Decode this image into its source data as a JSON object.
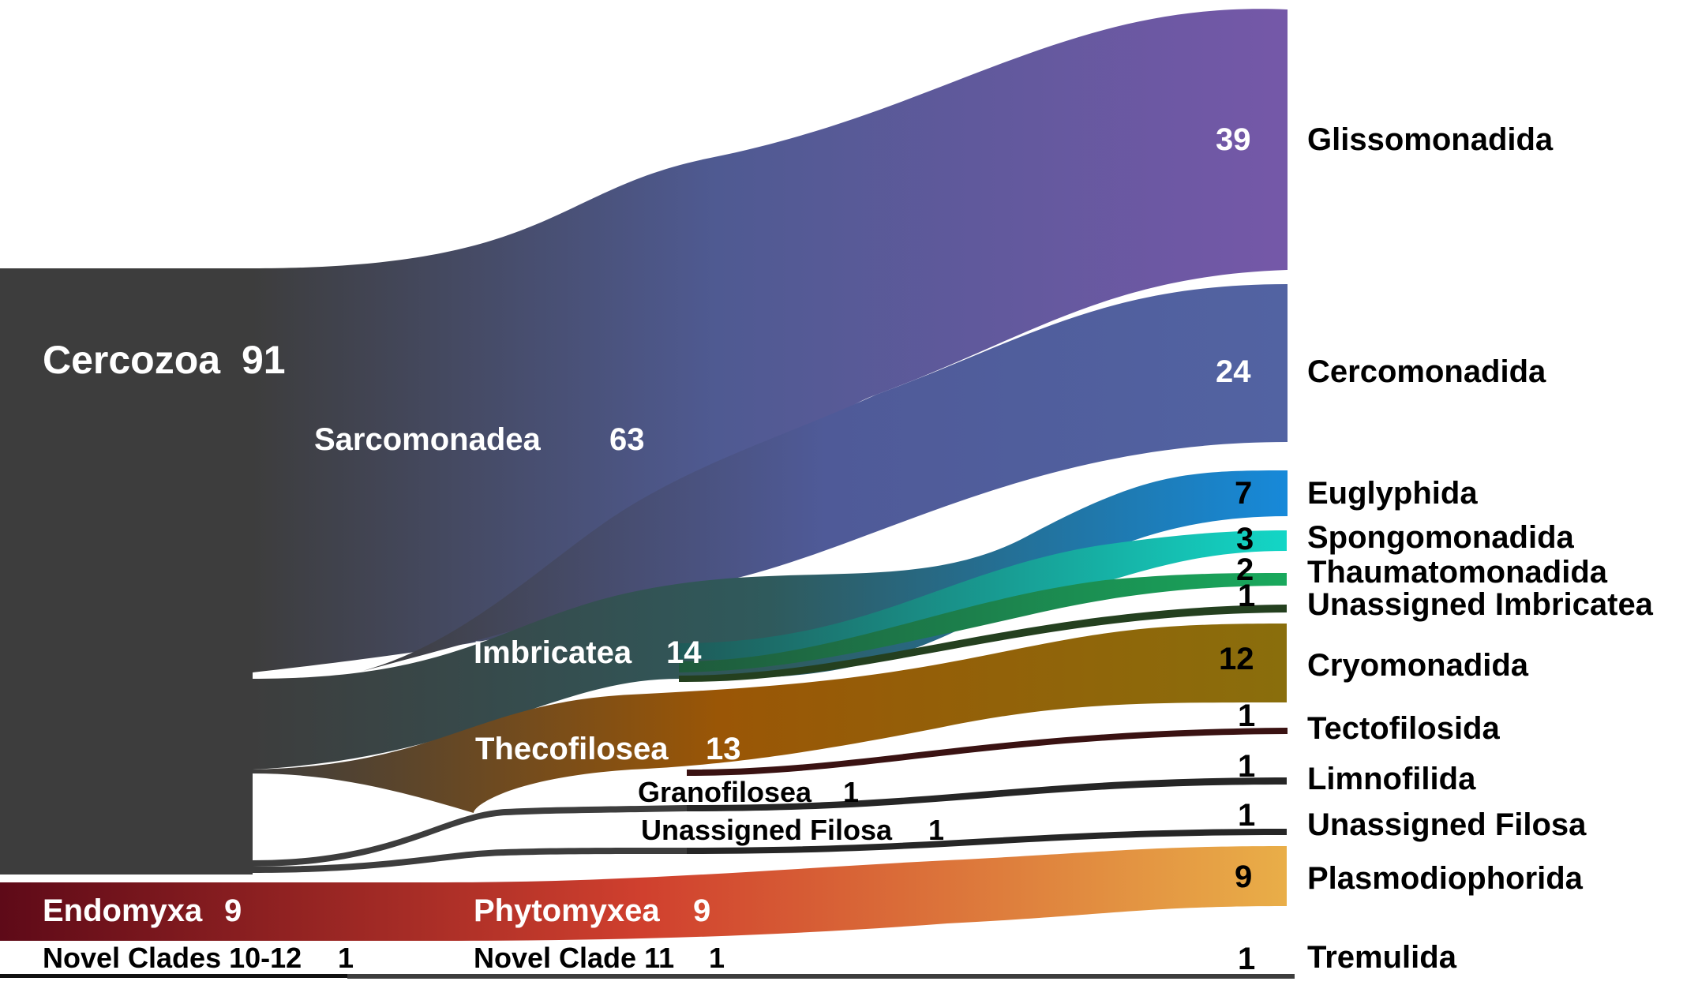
{
  "chart_data": {
    "type": "sankey",
    "title": "",
    "level1": [
      {
        "name": "Cercozoa",
        "value": 91
      },
      {
        "name": "Endomyxa",
        "value": 9
      },
      {
        "name": "Novel Clades 10-12",
        "value": 1
      }
    ],
    "level2": [
      {
        "name": "Sarcomonadea",
        "value": 63,
        "parent": "Cercozoa"
      },
      {
        "name": "Imbricatea",
        "value": 14,
        "parent": "Cercozoa"
      },
      {
        "name": "Thecofilosea",
        "value": 13,
        "parent": "Cercozoa"
      },
      {
        "name": "Granofilosea",
        "value": 1,
        "parent": "Cercozoa"
      },
      {
        "name": "Unassigned Filosa",
        "value": 1,
        "parent": "Cercozoa"
      },
      {
        "name": "Phytomyxea",
        "value": 9,
        "parent": "Endomyxa"
      },
      {
        "name": "Novel Clade 11",
        "value": 1,
        "parent": "Novel Clades 10-12"
      }
    ],
    "level3": [
      {
        "name": "Glissomonadida",
        "value": 39,
        "parent": "Sarcomonadea",
        "color": "#7558A8"
      },
      {
        "name": "Cercomonadida",
        "value": 24,
        "parent": "Sarcomonadea",
        "color": "#5263A2"
      },
      {
        "name": "Euglyphida",
        "value": 7,
        "parent": "Imbricatea",
        "color": "#1789D9"
      },
      {
        "name": "Spongomonadida",
        "value": 3,
        "parent": "Imbricatea",
        "color": "#13D6C6"
      },
      {
        "name": "Thaumatomonadida",
        "value": 2,
        "parent": "Imbricatea",
        "color": "#19A95D"
      },
      {
        "name": "Unassigned Imbricatea",
        "value": 1,
        "parent": "Imbricatea",
        "color": "#24401F"
      },
      {
        "name": "Cryomonadida",
        "value": 12,
        "parent": "Thecofilosea",
        "color": "#8A6E0C"
      },
      {
        "name": "Tectofilosida",
        "value": 1,
        "parent": "Thecofilosea",
        "color": "#3A1212"
      },
      {
        "name": "Limnofilida",
        "value": 1,
        "parent": "Granofilosea",
        "color": "#262626"
      },
      {
        "name": "Unassigned Filosa",
        "value": 1,
        "parent": "Unassigned Filosa",
        "color": "#262626"
      },
      {
        "name": "Plasmodiophorida",
        "value": 9,
        "parent": "Phytomyxea",
        "color": "#E9AE48"
      },
      {
        "name": "Tremulida",
        "value": 1,
        "parent": "Novel Clade 11",
        "color": "#111111"
      }
    ]
  },
  "colors": {
    "cercozoa": "#3B3B3B",
    "endomyxa": "#6E0E1E",
    "novel": "#111111"
  }
}
